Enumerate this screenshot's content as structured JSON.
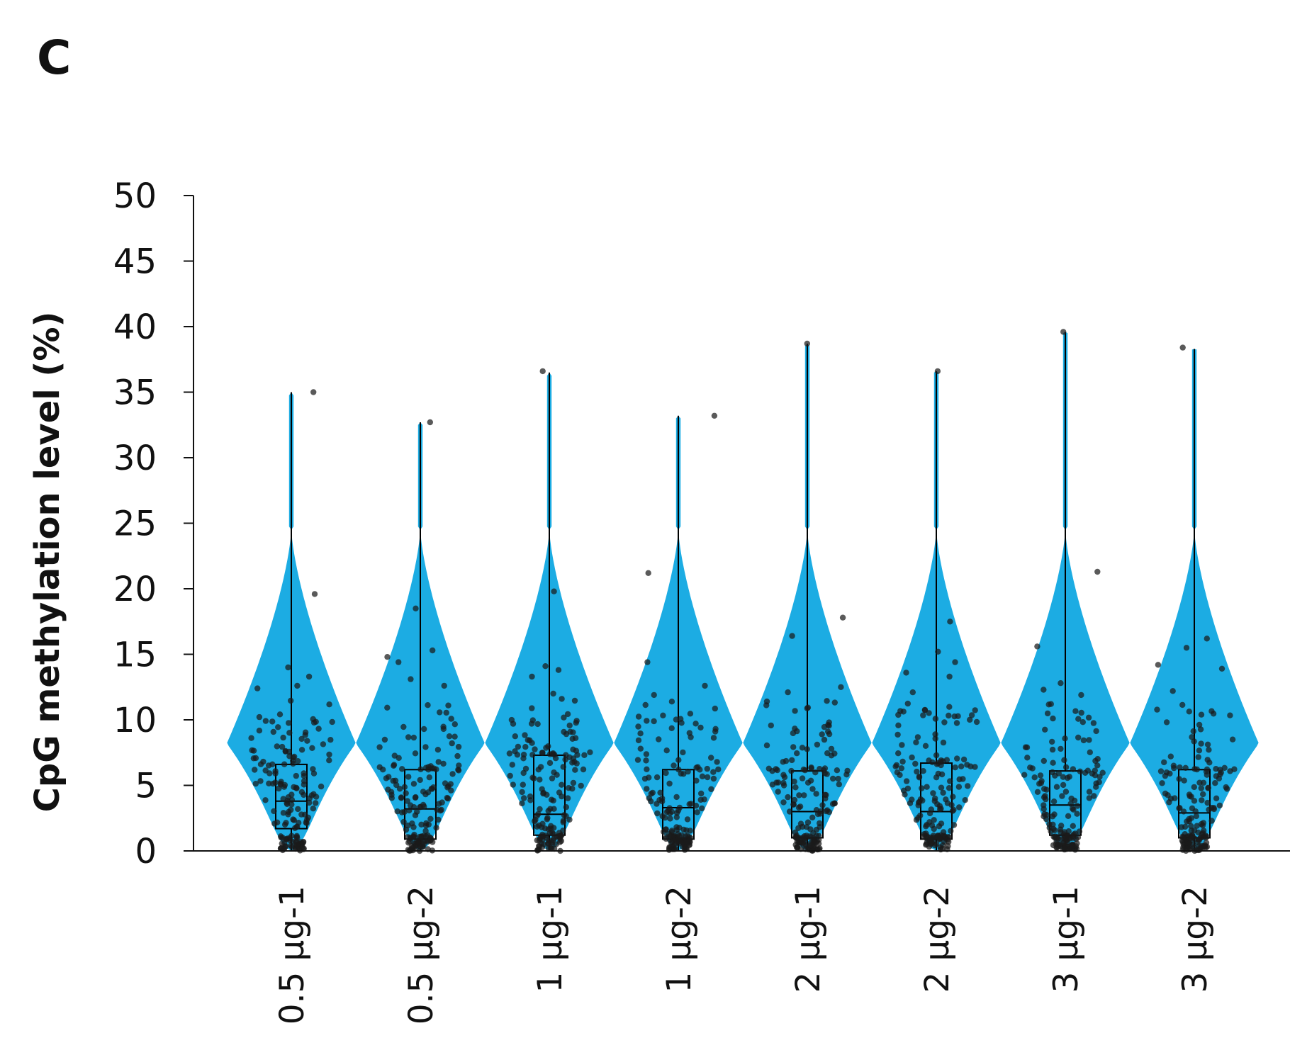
{
  "panel_label": "C",
  "colors": {
    "violin": "#1CACE3",
    "points": "#1a1a1a",
    "axis": "#111111"
  },
  "chart_data": {
    "type": "violin",
    "title": "",
    "xlabel": "",
    "ylabel": "CpG methylation level (%)",
    "ylim": [
      0,
      50
    ],
    "yticks": [
      0,
      5,
      10,
      15,
      20,
      25,
      30,
      35,
      40,
      45,
      50
    ],
    "legend": "none",
    "grid": false,
    "categories": [
      "0.5 μg-1",
      "0.5 μg-2",
      "1 μg-1",
      "1 μg-2",
      "2 μg-1",
      "2 μg-2",
      "3 μg-1",
      "3 μg-2"
    ],
    "series": [
      {
        "category": "0.5 μg-1",
        "q1": 1.7,
        "median": 3.8,
        "q3": 6.6,
        "whisker_low": 0,
        "whisker_high": 35.0,
        "violin_mode": 8.2,
        "violin_top": 35.0,
        "outliers": [
          35.0,
          19.6,
          14.0,
          13.3,
          12.6,
          12.4
        ]
      },
      {
        "category": "0.5 μg-2",
        "q1": 0.9,
        "median": 3.2,
        "q3": 6.2,
        "whisker_low": 0,
        "whisker_high": 32.7,
        "violin_mode": 8.2,
        "violin_top": 32.7,
        "outliers": [
          32.7,
          18.5,
          15.3,
          14.8,
          14.4,
          13.1,
          12.6
        ]
      },
      {
        "category": "1 μg-1",
        "q1": 1.2,
        "median": 2.8,
        "q3": 7.3,
        "whisker_low": 0,
        "whisker_high": 36.5,
        "violin_mode": 8.2,
        "violin_top": 36.5,
        "outliers": [
          36.6,
          19.8,
          14.1,
          13.8,
          13.3,
          12.0,
          11.6
        ]
      },
      {
        "category": "1 μg-2",
        "q1": 0.9,
        "median": 3.3,
        "q3": 6.2,
        "whisker_low": 0,
        "whisker_high": 33.2,
        "violin_mode": 8.2,
        "violin_top": 33.2,
        "outliers": [
          33.2,
          21.2,
          14.4,
          12.6,
          11.9
        ]
      },
      {
        "category": "2 μg-1",
        "q1": 1.0,
        "median": 3.0,
        "q3": 6.1,
        "whisker_low": 0,
        "whisker_high": 38.7,
        "violin_mode": 8.2,
        "violin_top": 38.7,
        "outliers": [
          38.7,
          17.8,
          16.4,
          12.5,
          12.1
        ]
      },
      {
        "category": "2 μg-2",
        "q1": 0.9,
        "median": 3.0,
        "q3": 6.7,
        "whisker_low": 0,
        "whisker_high": 36.6,
        "violin_mode": 8.2,
        "violin_top": 36.6,
        "outliers": [
          36.6,
          17.5,
          15.2,
          14.4,
          13.6,
          13.3,
          12.1
        ]
      },
      {
        "category": "3 μg-1",
        "q1": 1.2,
        "median": 3.5,
        "q3": 6.1,
        "whisker_low": 0,
        "whisker_high": 39.6,
        "violin_mode": 8.2,
        "violin_top": 39.6,
        "outliers": [
          39.6,
          21.3,
          15.6,
          12.8,
          12.3,
          11.9
        ]
      },
      {
        "category": "3 μg-2",
        "q1": 1.0,
        "median": 2.9,
        "q3": 6.2,
        "whisker_low": 0,
        "whisker_high": 38.3,
        "violin_mode": 8.2,
        "violin_top": 38.3,
        "outliers": [
          38.4,
          16.2,
          15.5,
          14.2,
          13.9,
          12.2
        ]
      }
    ]
  }
}
